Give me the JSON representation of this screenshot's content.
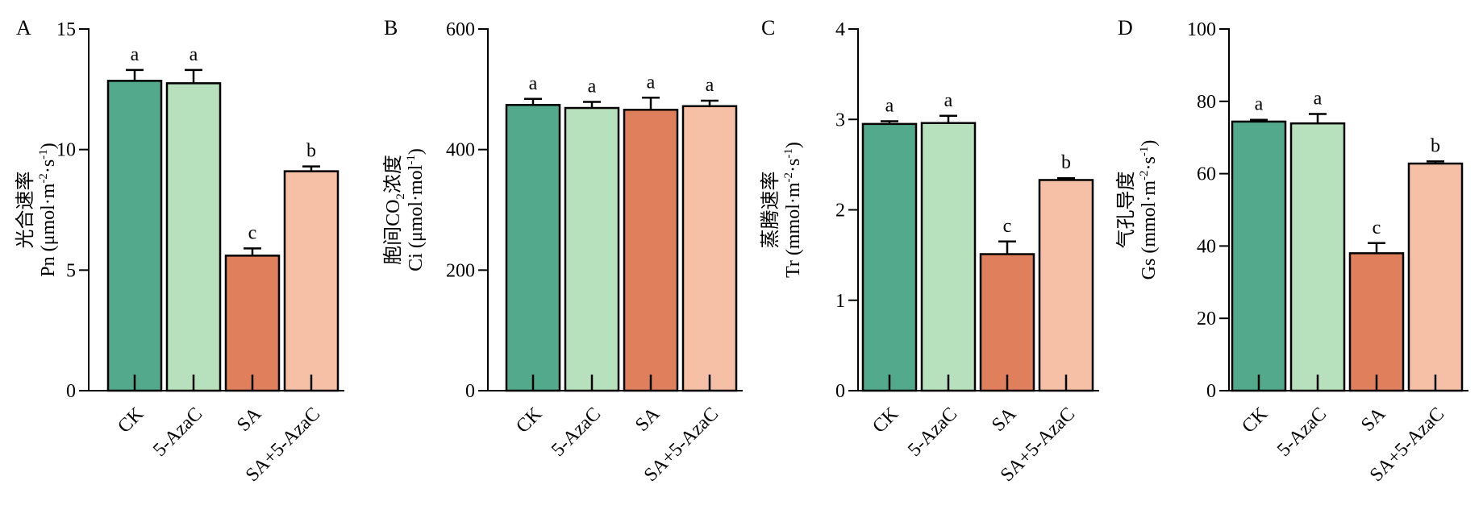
{
  "figure": {
    "categories": [
      "CK",
      "5-AzaC",
      "SA",
      "SA+5-AzaC"
    ],
    "colors": [
      "#52a98b",
      "#b7e0bd",
      "#df7f5c",
      "#f5c0a5"
    ]
  },
  "chart_data": [
    {
      "type": "bar",
      "panel": "A",
      "ylabel_line1": "光合速率",
      "ylabel_line2": "Pn (μmol·m",
      "ylabel_unit_sup1": "-2",
      "ylabel_unit_mid": "·s",
      "ylabel_unit_sup2": "-1",
      "ylabel_unit_end": ")",
      "ylim": [
        0,
        15
      ],
      "yticks": [
        0,
        5,
        10,
        15
      ],
      "categories": [
        "CK",
        "5-AzaC",
        "SA",
        "SA+5-AzaC"
      ],
      "values": [
        12.85,
        12.75,
        5.6,
        9.1
      ],
      "errors": [
        0.45,
        0.55,
        0.3,
        0.2
      ],
      "letters": [
        "a",
        "a",
        "c",
        "b"
      ]
    },
    {
      "type": "bar",
      "panel": "B",
      "ylabel_line1": "胞间CO",
      "ylabel_line1_sub": "2",
      "ylabel_line1_end": "浓度",
      "ylabel_line2": "Ci (μmol·mol",
      "ylabel_unit_sup1": "-1",
      "ylabel_unit_end": ")",
      "ylim": [
        0,
        600
      ],
      "yticks": [
        0,
        200,
        400,
        600
      ],
      "categories": [
        "CK",
        "5-AzaC",
        "SA",
        "SA+5-AzaC"
      ],
      "values": [
        474,
        469,
        466,
        472
      ],
      "errors": [
        10,
        10,
        20,
        9
      ],
      "letters": [
        "a",
        "a",
        "a",
        "a"
      ]
    },
    {
      "type": "bar",
      "panel": "C",
      "ylabel_line1": "蒸腾速率",
      "ylabel_line2": "Tr (mmol·m",
      "ylabel_unit_sup1": "-2",
      "ylabel_unit_mid": "·s",
      "ylabel_unit_sup2": "-1",
      "ylabel_unit_end": ")",
      "ylim": [
        0,
        4
      ],
      "yticks": [
        0,
        1,
        2,
        3,
        4
      ],
      "categories": [
        "CK",
        "5-AzaC",
        "SA",
        "SA+5-AzaC"
      ],
      "values": [
        2.95,
        2.96,
        1.51,
        2.33
      ],
      "errors": [
        0.03,
        0.08,
        0.14,
        0.02
      ],
      "letters": [
        "a",
        "a",
        "c",
        "b"
      ]
    },
    {
      "type": "bar",
      "panel": "D",
      "ylabel_line1": "气孔导度",
      "ylabel_line2": "Gs (mmol·m",
      "ylabel_unit_sup1": "-2",
      "ylabel_unit_mid": "·s",
      "ylabel_unit_sup2": "-1",
      "ylabel_unit_end": ")",
      "ylim": [
        0,
        100
      ],
      "yticks": [
        0,
        20,
        40,
        60,
        80,
        100
      ],
      "categories": [
        "CK",
        "5-AzaC",
        "SA",
        "SA+5-AzaC"
      ],
      "values": [
        74.4,
        73.9,
        38.0,
        62.8
      ],
      "errors": [
        0.5,
        2.6,
        2.8,
        0.6
      ],
      "letters": [
        "a",
        "a",
        "c",
        "b"
      ]
    }
  ]
}
